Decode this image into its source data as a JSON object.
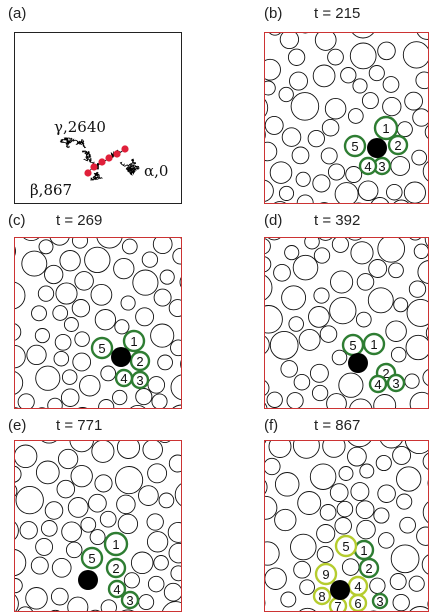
{
  "panels": [
    {
      "id": "a",
      "label": "(a)",
      "time": ""
    },
    {
      "id": "b",
      "label": "(b)",
      "time": "t = 215"
    },
    {
      "id": "c",
      "label": "(c)",
      "time": "t = 269"
    },
    {
      "id": "d",
      "label": "(d)",
      "time": "t = 392"
    },
    {
      "id": "e",
      "label": "(e)",
      "time": "t = 771"
    },
    {
      "id": "f",
      "label": "(f)",
      "time": "t = 867"
    }
  ],
  "trajectory": {
    "gamma_label": "γ,2640",
    "beta_label": "β,867",
    "alpha_label": "α,0"
  },
  "neighbor_labels": {
    "b": [
      "1",
      "2",
      "3",
      "4",
      "5"
    ],
    "c": [
      "1",
      "2",
      "3",
      "4",
      "5"
    ],
    "d": [
      "1",
      "2",
      "3",
      "4",
      "5"
    ],
    "e": [
      "1",
      "2",
      "3",
      "4",
      "5"
    ],
    "f": [
      "1",
      "2",
      "3",
      "4",
      "5",
      "6",
      "7",
      "8",
      "9"
    ]
  },
  "colors": {
    "frame_red": "#cc3333",
    "dark_green": "#2e7d32",
    "yellow_green": "#b5cc2e",
    "tracer": "#000000",
    "path_dot": "#e0203a"
  }
}
